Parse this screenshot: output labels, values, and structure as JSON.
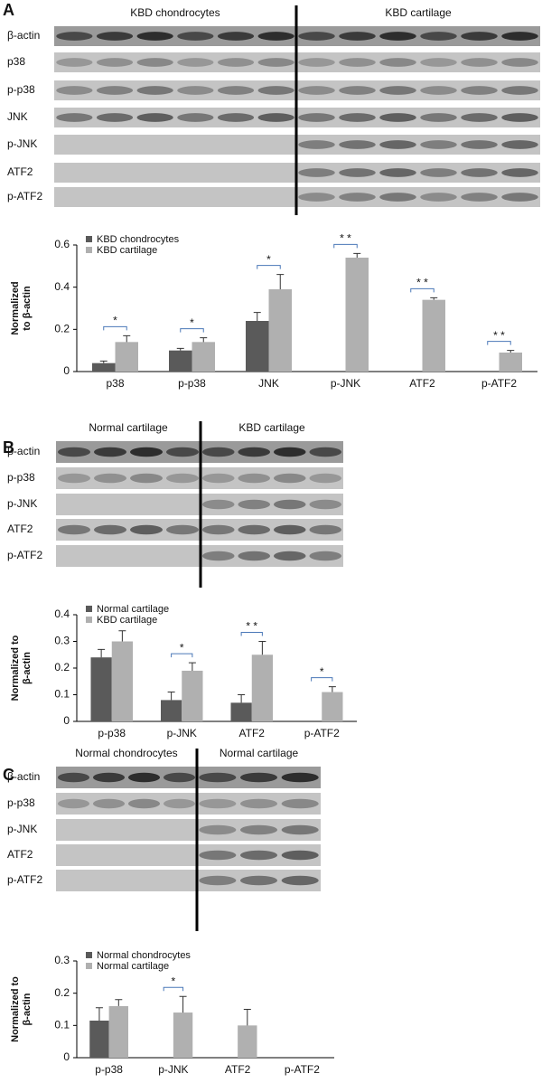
{
  "chart_data": [
    {
      "type": "bar",
      "panel": "A",
      "ylabel": [
        "Normalized",
        "to β-actin"
      ],
      "categories": [
        "p38",
        "p-p38",
        "JNK",
        "p-JNK",
        "ATF2",
        "p-ATF2"
      ],
      "series": [
        {
          "name": "KBD chondrocytes",
          "color": "#5a5a5a",
          "values": [
            0.04,
            0.1,
            0.24,
            null,
            null,
            null
          ],
          "errors": [
            0.01,
            0.01,
            0.04,
            null,
            null,
            null
          ]
        },
        {
          "name": "KBD cartilage",
          "color": "#b0b0b0",
          "values": [
            0.14,
            0.14,
            0.39,
            0.54,
            0.34,
            0.09
          ],
          "errors": [
            0.03,
            0.02,
            0.07,
            0.02,
            0.01,
            0.01
          ]
        }
      ],
      "significance": [
        "*",
        "*",
        "*",
        "* *",
        "* *",
        "* *"
      ],
      "ylim": [
        0,
        0.6
      ],
      "yticks": [
        0,
        0.2,
        0.4,
        0.6
      ],
      "blot": {
        "groups": [
          "KBD chondrocytes",
          "KBD cartilage"
        ],
        "rows": [
          "β-actin",
          "p38",
          "p-p38",
          "JNK",
          "p-JNK",
          "ATF2",
          "p-ATF2"
        ]
      }
    },
    {
      "type": "bar",
      "panel": "B",
      "ylabel": [
        "Normalized to",
        "β-actin"
      ],
      "categories": [
        "p-p38",
        "p-JNK",
        "ATF2",
        "p-ATF2"
      ],
      "series": [
        {
          "name": "Normal cartilage",
          "color": "#5a5a5a",
          "values": [
            0.24,
            0.08,
            0.07,
            null
          ],
          "errors": [
            0.03,
            0.03,
            0.03,
            null
          ]
        },
        {
          "name": "KBD cartilage",
          "color": "#b0b0b0",
          "values": [
            0.3,
            0.19,
            0.25,
            0.11
          ],
          "errors": [
            0.04,
            0.03,
            0.05,
            0.02
          ]
        }
      ],
      "significance": [
        null,
        "*",
        "* *",
        "*"
      ],
      "ylim": [
        0,
        0.4
      ],
      "yticks": [
        0,
        0.1,
        0.2,
        0.3,
        0.4
      ],
      "blot": {
        "groups": [
          "Normal cartilage",
          "KBD cartilage"
        ],
        "rows": [
          "β-actin",
          "p-p38",
          "p-JNK",
          "ATF2",
          "p-ATF2"
        ]
      }
    },
    {
      "type": "bar",
      "panel": "C",
      "ylabel": [
        "Normalized to",
        "β-actin"
      ],
      "categories": [
        "p-p38",
        "p-JNK",
        "ATF2",
        "p-ATF2"
      ],
      "series": [
        {
          "name": "Normal chondrocytes",
          "color": "#5a5a5a",
          "values": [
            0.115,
            null,
            null,
            null
          ],
          "errors": [
            0.04,
            null,
            null,
            null
          ]
        },
        {
          "name": "Normal cartilage",
          "color": "#b0b0b0",
          "values": [
            0.16,
            0.14,
            0.1,
            null
          ],
          "errors": [
            0.02,
            0.05,
            0.05,
            null
          ]
        }
      ],
      "significance": [
        null,
        "*",
        null,
        null
      ],
      "ylim": [
        0,
        0.3
      ],
      "yticks": [
        0,
        0.1,
        0.2,
        0.3
      ],
      "blot": {
        "groups": [
          "Normal chondrocytes",
          "Normal cartilage"
        ],
        "rows": [
          "β-actin",
          "p-p38",
          "p-JNK",
          "ATF2",
          "p-ATF2"
        ]
      }
    }
  ]
}
